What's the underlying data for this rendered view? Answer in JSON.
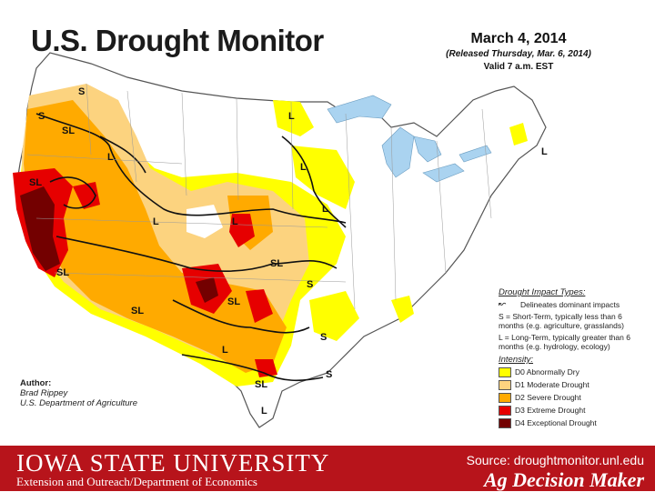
{
  "map": {
    "title": "U.S. Drought Monitor",
    "date": "March 4, 2014",
    "released": "(Released Thursday, Mar. 6, 2014)",
    "valid": "Valid 7 a.m. EST",
    "region_labels": [
      "S",
      "S",
      "SL",
      "L",
      "SL",
      "L",
      "L",
      "L",
      "L",
      "L",
      "SL",
      "SL",
      "L",
      "SL",
      "S",
      "SL",
      "S",
      "L",
      "SL",
      "S",
      "L"
    ],
    "colors": {
      "d0": "#ffff00",
      "d1": "#fcd37f",
      "d2": "#ffaa00",
      "d3": "#e60000",
      "d4": "#730000",
      "water": "#aad3f0",
      "background": "#ffffff"
    }
  },
  "legend": {
    "impact_title": "Drought Impact Types:",
    "impact_items": [
      {
        "glyph": "↜",
        "text": "Delineates dominant impacts"
      },
      {
        "glyph": "",
        "text": "S = Short-Term, typically less than 6 months (e.g. agriculture, grasslands)"
      },
      {
        "glyph": "",
        "text": "L = Long-Term, typically greater than 6 months (e.g. hydrology, ecology)"
      }
    ],
    "intensity_title": "Intensity:",
    "intensity_items": [
      {
        "label": "D0 Abnormally Dry",
        "color": "#ffff00"
      },
      {
        "label": "D1 Moderate Drought",
        "color": "#fcd37f"
      },
      {
        "label": "D2 Severe Drought",
        "color": "#ffaa00"
      },
      {
        "label": "D3 Extreme Drought",
        "color": "#e60000"
      },
      {
        "label": "D4 Exceptional Drought",
        "color": "#730000"
      }
    ]
  },
  "author": {
    "heading": "Author:",
    "name": "Brad Rippey",
    "org": "U.S. Department of Agriculture"
  },
  "footer": {
    "university": "IOWA STATE UNIVERSITY",
    "department": "Extension and Outreach/Department of Economics",
    "source": "Source: droughtmonitor.unl.edu",
    "brand": "Ag Decision Maker",
    "color": "#b7141b"
  }
}
